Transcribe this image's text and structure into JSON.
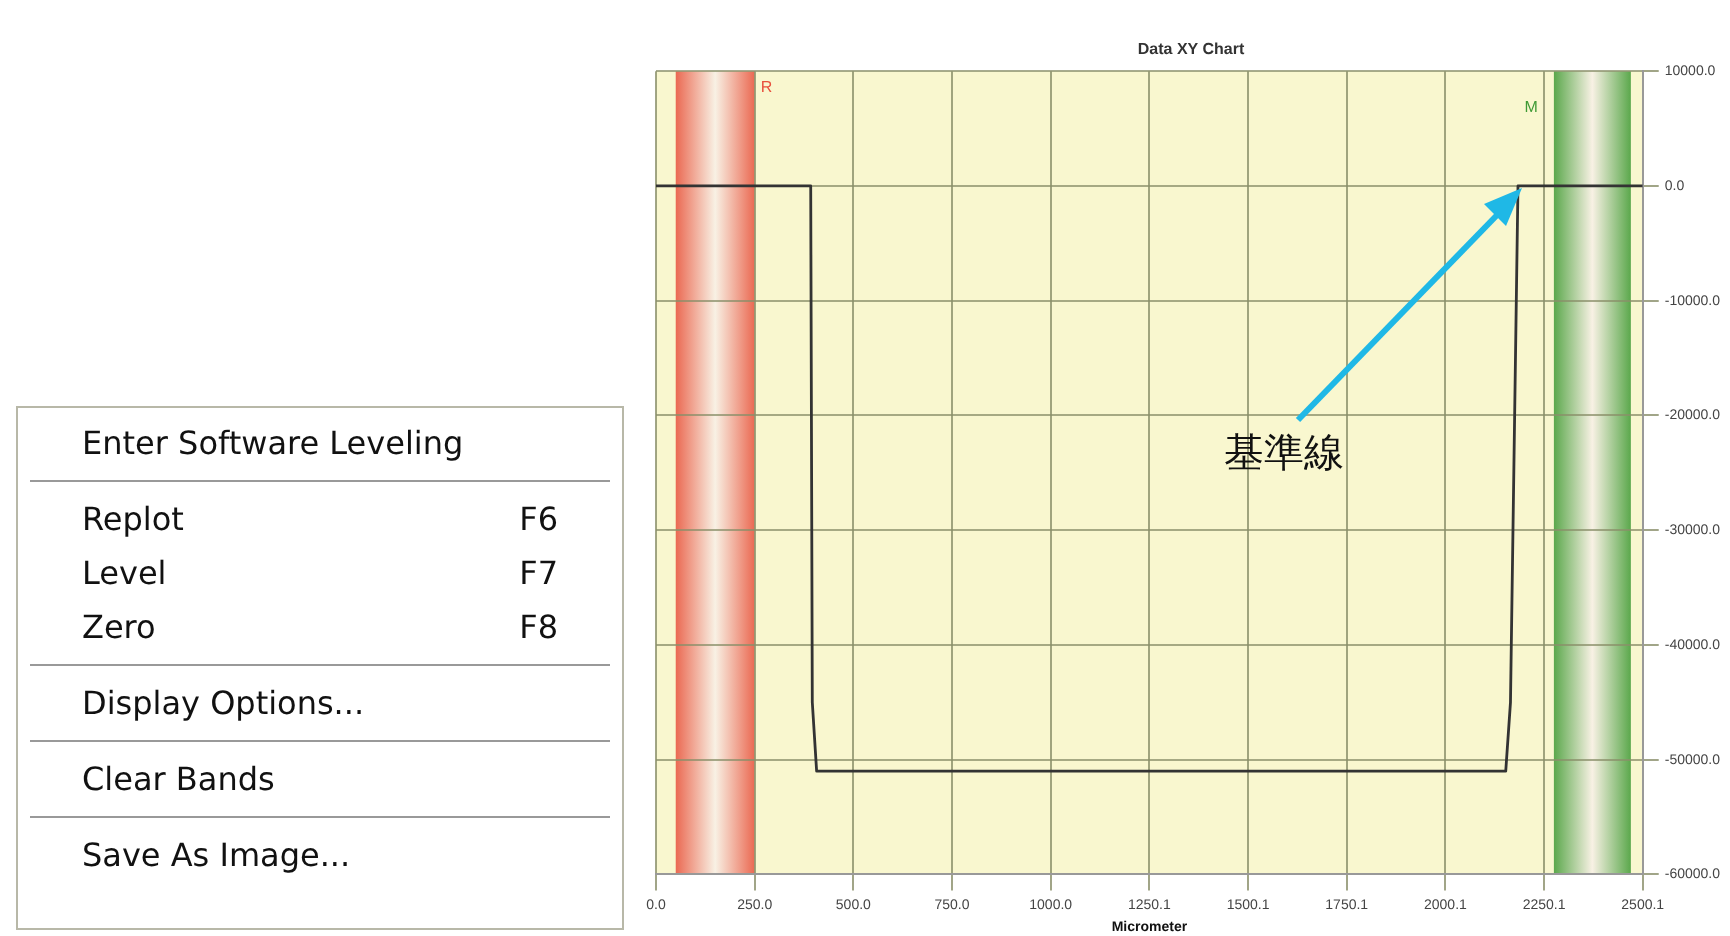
{
  "chart_data": [
    {
      "type": "line",
      "title": "Data XY Chart",
      "xlabel": "Micrometer",
      "x": [
        0,
        392,
        396,
        407,
        1250,
        2153,
        2165,
        2184,
        2500.1
      ],
      "series": [
        {
          "color": "#333333",
          "values": [
            0,
            0,
            -45000,
            -51000,
            -51000,
            -51000,
            -45000,
            0,
            0
          ]
        }
      ],
      "xlim": [
        0,
        2500.1
      ],
      "xticks": [
        {
          "value": 0,
          "label": "0.0"
        },
        {
          "value": 250,
          "label": "250.0"
        },
        {
          "value": 500,
          "label": "500.0"
        },
        {
          "value": 750,
          "label": "750.0"
        },
        {
          "value": 1000,
          "label": "1000.0"
        },
        1250.1,
        1500.1,
        1750.1,
        2000.1,
        2250.1,
        2500.1
      ],
      "ylim": [
        -60000,
        10000
      ],
      "yticks": [
        {
          "value": -60000,
          "label": "-60000.0"
        },
        {
          "value": -50000,
          "label": "-50000.0"
        },
        {
          "value": -40000,
          "label": "-40000.0"
        },
        {
          "value": -30000,
          "label": "-30000.0"
        },
        {
          "value": -20000,
          "label": "-20000.0"
        },
        {
          "value": -10000,
          "label": "-10000.0"
        },
        {
          "value": 0,
          "label": "0.0"
        },
        {
          "value": 10000,
          "label": "10000.0"
        }
      ],
      "bands": [
        {
          "axis": "x",
          "from": 50,
          "to": 250,
          "label": "R",
          "color": "#e8503c"
        },
        {
          "axis": "x",
          "from": 2275,
          "to": 2470,
          "label": "M",
          "color": "#3f9a35"
        }
      ],
      "annotations": [
        "基準線"
      ],
      "grid": true,
      "legend": false,
      "marker": "none",
      "line_style": "solid"
    },
    {
      "type": "other",
      "annotations": [
        "Enter Software Leveling",
        "Replot",
        "F6",
        "Level",
        "F7",
        "Zero",
        "F8",
        "Display Options...",
        "Clear Bands",
        "Save As Image..."
      ]
    }
  ]
}
